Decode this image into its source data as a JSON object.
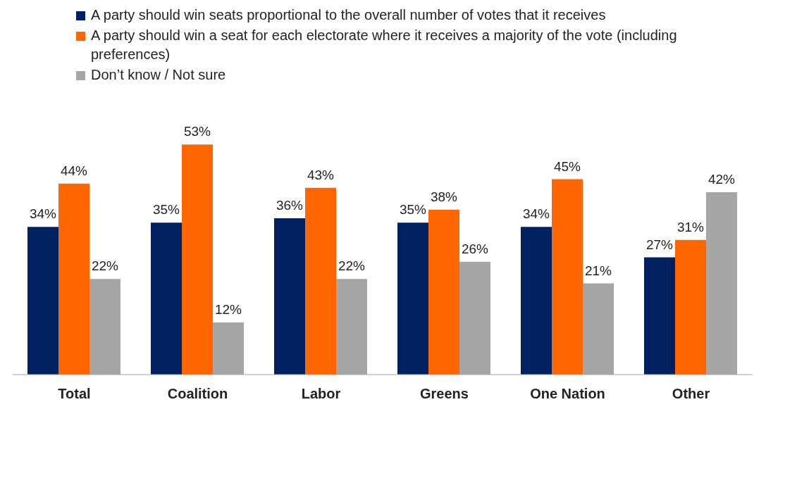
{
  "chart_data": {
    "type": "bar",
    "categories": [
      "Total",
      "Coalition",
      "Labor",
      "Greens",
      "One Nation",
      "Other"
    ],
    "series": [
      {
        "name": "A party should win seats proportional to the overall number of votes that it receives",
        "color": "#002060",
        "values": [
          34,
          35,
          36,
          35,
          34,
          27
        ],
        "value_labels": [
          "34%",
          "35%",
          "36%",
          "35%",
          "34%",
          "27%"
        ]
      },
      {
        "name": "A party should win a seat for each electorate where it receives a majority of the vote (including preferences)",
        "color": "#ff6600",
        "values": [
          44,
          53,
          43,
          38,
          45,
          31
        ],
        "value_labels": [
          "44%",
          "53%",
          "43%",
          "38%",
          "45%",
          "31%"
        ]
      },
      {
        "name": "Don’t know / Not sure",
        "color": "#a6a6a6",
        "values": [
          22,
          12,
          22,
          26,
          21,
          42
        ],
        "value_labels": [
          "22%",
          "12%",
          "22%",
          "26%",
          "21%",
          "42%"
        ]
      }
    ],
    "legend": "top",
    "grid": false
  }
}
